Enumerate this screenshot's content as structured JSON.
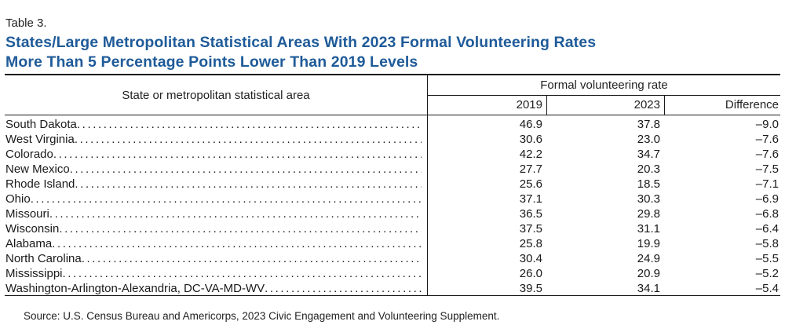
{
  "table_label": "Table 3.",
  "title_line1": "States/Large Metropolitan Statistical Areas With 2023 Formal Volunteering Rates",
  "title_line2": "More Than 5 Percentage Points Lower Than 2019 Levels",
  "header": {
    "stub": "State or metropolitan statistical area",
    "span": "Formal volunteering rate",
    "col_2019": "2019",
    "col_2023": "2023",
    "col_diff": "Difference"
  },
  "rows": [
    {
      "name": "South Dakota",
      "v2019": "46.9",
      "v2023": "37.8",
      "diff": "–9.0"
    },
    {
      "name": "West Virginia",
      "v2019": "30.6",
      "v2023": "23.0",
      "diff": "–7.6"
    },
    {
      "name": "Colorado",
      "v2019": "42.2",
      "v2023": "34.7",
      "diff": "–7.6"
    },
    {
      "name": "New Mexico",
      "v2019": "27.7",
      "v2023": "20.3",
      "diff": "–7.5"
    },
    {
      "name": "Rhode Island",
      "v2019": "25.6",
      "v2023": "18.5",
      "diff": "–7.1"
    },
    {
      "name": "Ohio",
      "v2019": "37.1",
      "v2023": "30.3",
      "diff": "–6.9"
    },
    {
      "name": "Missouri",
      "v2019": "36.5",
      "v2023": "29.8",
      "diff": "–6.8"
    },
    {
      "name": "Wisconsin",
      "v2019": "37.5",
      "v2023": "31.1",
      "diff": "–6.4"
    },
    {
      "name": "Alabama",
      "v2019": "25.8",
      "v2023": "19.9",
      "diff": "–5.8"
    },
    {
      "name": "North Carolina",
      "v2019": "30.4",
      "v2023": "24.9",
      "diff": "–5.5"
    },
    {
      "name": "Mississippi",
      "v2019": "26.0",
      "v2023": "20.9",
      "diff": "–5.2"
    },
    {
      "name": "Washington-Arlington-Alexandria, DC-VA-MD-WV",
      "v2019": "39.5",
      "v2023": "34.1",
      "diff": "–5.4"
    }
  ],
  "source": "Source: U.S. Census Bureau and Americorps, 2023 Civic Engagement and Volunteering Supplement."
}
